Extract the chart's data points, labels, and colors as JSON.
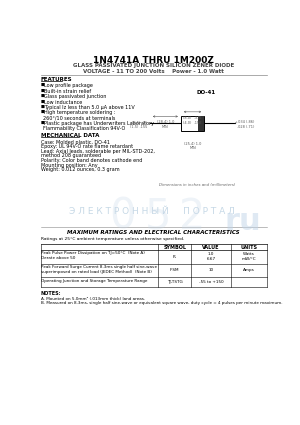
{
  "title": "1N4741A THRU 1M200Z",
  "subtitle": "GLASS PASSIVATED JUNCTION SILICON ZENER DIODE",
  "subtitle2": "VOLTAGE - 11 TO 200 Volts    Power - 1.0 Watt",
  "features_title": "FEATURES",
  "mech_title": "MECHANICAL DATA",
  "package_title": "DO-41",
  "table_title": "MAXIMUM RATINGS AND ELECTRICAL CHARACTERISTICS",
  "table_note": "Ratings at 25°C ambient temperature unless otherwise specified.",
  "table_headers": [
    "",
    "SYMBOL",
    "VALUE",
    "UNITS"
  ],
  "notes_title": "NOTES:",
  "note_a": "A. Mounted on 5.0mm² (.013mm thick) land areas.",
  "note_b": "B. Measured on 8.3ms, single half sine-wave or equivalent square wave, duty cycle = 4 pulses per minute maximum.",
  "watermark": "Э Л Е К Т Р О Н Н Ы Й     П О Р Т А Л",
  "bg_color": "#ffffff",
  "text_color": "#000000",
  "dim_color": "#555555"
}
